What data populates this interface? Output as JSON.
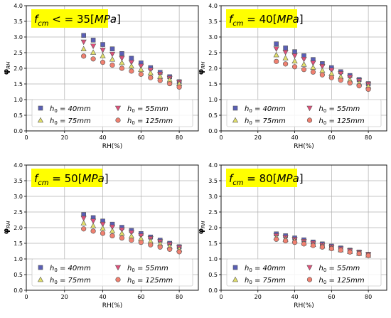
{
  "colors": {
    "h40": "#5a5fb5",
    "h55": "#e0507a",
    "h75": "#e2e06a",
    "h125": "#f08070",
    "title_bg": "#ffff00",
    "marker_edge": "#555555"
  },
  "chart_data": [
    {
      "type": "scatter",
      "title": "f_cm <= 35[MPa]",
      "title_parts": {
        "f": "f",
        "sub": "cm",
        "rest": " < = 35[",
        "unit": "MPa",
        "close": "]"
      },
      "xlabel": "RH(%)",
      "ylabel": "φ_RH",
      "ylabel_parts": {
        "main": "φ",
        "sub": "RH"
      },
      "xlim": [
        0,
        90
      ],
      "ylim": [
        0,
        4.0
      ],
      "xticks": [
        0,
        20,
        40,
        60,
        80
      ],
      "yticks": [
        0.0,
        0.5,
        1.0,
        1.5,
        2.0,
        2.5,
        3.0,
        3.5,
        4.0
      ],
      "ytick_labels": [
        "0.0",
        "0.5",
        "1.0",
        "1.5",
        "2.0",
        "2.5",
        "3.0",
        "3.5",
        "4.0"
      ],
      "grid": true,
      "legend_position": "lower-center",
      "x": [
        30,
        35,
        40,
        45,
        50,
        55,
        60,
        65,
        70,
        75,
        80
      ],
      "series": [
        {
          "name": "h_0 = 40mm",
          "label_main": "h",
          "label_sub": "0",
          "label_rest": " = 40mm",
          "marker": "square",
          "color_key": "h40",
          "values": [
            3.05,
            2.9,
            2.76,
            2.62,
            2.47,
            2.32,
            2.17,
            2.02,
            1.87,
            1.73,
            1.57
          ]
        },
        {
          "name": "h_0 = 55mm",
          "label_main": "h",
          "label_sub": "0",
          "label_rest": " = 55mm",
          "marker": "triangle-down",
          "color_key": "h55",
          "values": [
            2.84,
            2.71,
            2.58,
            2.45,
            2.32,
            2.19,
            2.07,
            1.94,
            1.81,
            1.68,
            1.55
          ]
        },
        {
          "name": "h_0 = 75mm",
          "label_main": "h",
          "label_sub": "0",
          "label_rest": " = 75mm",
          "marker": "triangle-up",
          "color_key": "h75",
          "values": [
            2.62,
            2.51,
            2.4,
            2.29,
            2.18,
            2.07,
            1.96,
            1.85,
            1.74,
            1.63,
            1.51
          ]
        },
        {
          "name": "h_0 = 125mm",
          "label_main": "h",
          "label_sub": "0",
          "label_rest": " = 125mm",
          "marker": "circle",
          "color_key": "h125",
          "values": [
            2.39,
            2.3,
            2.19,
            2.1,
            2.0,
            1.91,
            1.81,
            1.7,
            1.61,
            1.51,
            1.4
          ]
        }
      ]
    },
    {
      "type": "scatter",
      "title": "f_cm = 40[MPa]",
      "title_parts": {
        "f": "f",
        "sub": "cm",
        "rest": " = 40[",
        "unit": "MPa",
        "close": "]"
      },
      "xlabel": "RH(%)",
      "ylabel": "φ_RH",
      "ylabel_parts": {
        "main": "φ",
        "sub": "RH"
      },
      "xlim": [
        0,
        90
      ],
      "ylim": [
        0,
        4.0
      ],
      "xticks": [
        0,
        20,
        40,
        60,
        80
      ],
      "yticks": [
        0.0,
        0.5,
        1.0,
        1.5,
        2.0,
        2.5,
        3.0,
        3.5,
        4.0
      ],
      "ytick_labels": [
        "0.0",
        "0.5",
        "1.0",
        "1.5",
        "2.0",
        "2.5",
        "3.0",
        "3.5",
        "4.0"
      ],
      "grid": true,
      "legend_position": "lower-center",
      "x": [
        30,
        35,
        40,
        45,
        50,
        55,
        60,
        65,
        70,
        75,
        80
      ],
      "series": [
        {
          "name": "h_0 = 40mm",
          "label_main": "h",
          "label_sub": "0",
          "label_rest": " = 40mm",
          "marker": "square",
          "color_key": "h40",
          "values": [
            2.78,
            2.65,
            2.53,
            2.4,
            2.28,
            2.15,
            2.02,
            1.89,
            1.77,
            1.64,
            1.51
          ]
        },
        {
          "name": "h_0 = 55mm",
          "label_main": "h",
          "label_sub": "0",
          "label_rest": " = 55mm",
          "marker": "triangle-down",
          "color_key": "h55",
          "values": [
            2.62,
            2.51,
            2.4,
            2.29,
            2.17,
            2.06,
            1.94,
            1.83,
            1.71,
            1.6,
            1.49
          ]
        },
        {
          "name": "h_0 = 75mm",
          "label_main": "h",
          "label_sub": "0",
          "label_rest": " = 75mm",
          "marker": "triangle-up",
          "color_key": "h75",
          "values": [
            2.43,
            2.33,
            2.23,
            2.13,
            2.03,
            1.93,
            1.83,
            1.73,
            1.63,
            1.53,
            1.43
          ]
        },
        {
          "name": "h_0 = 125mm",
          "label_main": "h",
          "label_sub": "0",
          "label_rest": " = 125mm",
          "marker": "circle",
          "color_key": "h125",
          "values": [
            2.22,
            2.14,
            2.05,
            1.96,
            1.88,
            1.79,
            1.7,
            1.62,
            1.53,
            1.44,
            1.33
          ]
        }
      ]
    },
    {
      "type": "scatter",
      "title": "f_cm = 50[MPa]",
      "title_parts": {
        "f": "f",
        "sub": "cm",
        "rest": " = 50[",
        "unit": "MPa",
        "close": "]"
      },
      "xlabel": "RH(%)",
      "ylabel": "φ_RH",
      "ylabel_parts": {
        "main": "φ",
        "sub": "RH"
      },
      "xlim": [
        0,
        90
      ],
      "ylim": [
        0,
        4.0
      ],
      "xticks": [
        0,
        20,
        40,
        60,
        80
      ],
      "yticks": [
        0.0,
        0.5,
        1.0,
        1.5,
        2.0,
        2.5,
        3.0,
        3.5,
        4.0
      ],
      "ytick_labels": [
        "0.0",
        "0.5",
        "1.0",
        "1.5",
        "2.0",
        "2.5",
        "3.0",
        "3.5",
        "4.0"
      ],
      "grid": true,
      "legend_position": "lower-center",
      "x": [
        30,
        35,
        40,
        45,
        50,
        55,
        60,
        65,
        70,
        75,
        80
      ],
      "series": [
        {
          "name": "h_0 = 40mm",
          "label_main": "h",
          "label_sub": "0",
          "label_rest": " = 40mm",
          "marker": "square",
          "color_key": "h40",
          "values": [
            2.42,
            2.32,
            2.21,
            2.11,
            2.01,
            1.91,
            1.81,
            1.7,
            1.6,
            1.5,
            1.39
          ]
        },
        {
          "name": "h_0 = 55mm",
          "label_main": "h",
          "label_sub": "0",
          "label_rest": " = 55mm",
          "marker": "triangle-down",
          "color_key": "h55",
          "values": [
            2.3,
            2.21,
            2.11,
            2.02,
            1.93,
            1.84,
            1.74,
            1.65,
            1.55,
            1.46,
            1.36
          ]
        },
        {
          "name": "h_0 = 75mm",
          "label_main": "h",
          "label_sub": "0",
          "label_rest": " = 75mm",
          "marker": "triangle-up",
          "color_key": "h75",
          "values": [
            2.15,
            2.06,
            1.98,
            1.9,
            1.82,
            1.73,
            1.65,
            1.57,
            1.48,
            1.4,
            1.31
          ]
        },
        {
          "name": "h_0 = 125mm",
          "label_main": "h",
          "label_sub": "0",
          "label_rest": " = 125mm",
          "marker": "circle",
          "color_key": "h125",
          "values": [
            1.96,
            1.89,
            1.82,
            1.74,
            1.67,
            1.6,
            1.53,
            1.45,
            1.38,
            1.31,
            1.23
          ]
        }
      ]
    },
    {
      "type": "scatter",
      "title": "f_cm = 80[MPa]",
      "title_parts": {
        "f": "f",
        "sub": "cm",
        "rest": " = 80[",
        "unit": "MPa",
        "close": "]"
      },
      "xlabel": "RH(%)",
      "ylabel": "φ_RH",
      "ylabel_parts": {
        "main": "φ",
        "sub": "RH"
      },
      "xlim": [
        0,
        90
      ],
      "ylim": [
        0,
        4.0
      ],
      "xticks": [
        0,
        20,
        40,
        60,
        80
      ],
      "yticks": [
        0.0,
        0.5,
        1.0,
        1.5,
        2.0,
        2.5,
        3.0,
        3.5,
        4.0
      ],
      "ytick_labels": [
        "0.0",
        "0.5",
        "1.0",
        "1.5",
        "2.0",
        "2.5",
        "3.0",
        "3.5",
        "4.0"
      ],
      "grid": true,
      "legend_position": "lower-center",
      "x": [
        30,
        35,
        40,
        45,
        50,
        55,
        60,
        65,
        70,
        75,
        80
      ],
      "series": [
        {
          "name": "h_0 = 40mm",
          "label_main": "h",
          "label_sub": "0",
          "label_rest": " = 40mm",
          "marker": "square",
          "color_key": "h40",
          "values": [
            1.8,
            1.74,
            1.67,
            1.61,
            1.54,
            1.48,
            1.41,
            1.35,
            1.28,
            1.22,
            1.15
          ]
        },
        {
          "name": "h_0 = 55mm",
          "label_main": "h",
          "label_sub": "0",
          "label_rest": " = 55mm",
          "marker": "triangle-down",
          "color_key": "h55",
          "values": [
            1.74,
            1.68,
            1.62,
            1.56,
            1.5,
            1.44,
            1.38,
            1.32,
            1.26,
            1.2,
            1.14
          ]
        },
        {
          "name": "h_0 = 75mm",
          "label_main": "h",
          "label_sub": "0",
          "label_rest": " = 75mm",
          "marker": "triangle-up",
          "color_key": "h75",
          "values": [
            1.69,
            1.63,
            1.58,
            1.52,
            1.46,
            1.41,
            1.35,
            1.29,
            1.24,
            1.18,
            1.12
          ]
        },
        {
          "name": "h_0 = 125mm",
          "label_main": "h",
          "label_sub": "0",
          "label_rest": " = 125mm",
          "marker": "circle",
          "color_key": "h125",
          "values": [
            1.63,
            1.58,
            1.53,
            1.48,
            1.43,
            1.38,
            1.33,
            1.28,
            1.22,
            1.17,
            1.11
          ]
        }
      ]
    }
  ]
}
